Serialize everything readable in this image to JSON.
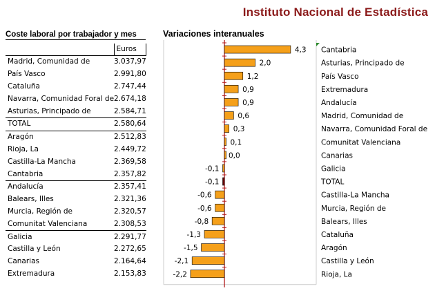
{
  "header": {
    "org": "Instituto Nacional de Estadística"
  },
  "table": {
    "title": "Coste laboral por trabajador y mes",
    "unit": "Euros",
    "rows": [
      {
        "region": "Madrid, Comunidad de",
        "value": "3.037,97"
      },
      {
        "region": "País Vasco",
        "value": "2.991,80"
      },
      {
        "region": "Cataluña",
        "value": "2.747,44"
      },
      {
        "region": "Navarra, Comunidad Foral de",
        "value": "2.674,18"
      },
      {
        "region": "Asturias, Principado de",
        "value": "2.584,71"
      },
      {
        "region": "TOTAL",
        "value": "2.580,64"
      },
      {
        "region": "Aragón",
        "value": "2.512,83"
      },
      {
        "region": "Rioja, La",
        "value": "2.449,72"
      },
      {
        "region": "Castilla-La Mancha",
        "value": "2.369,58"
      },
      {
        "region": "Cantabria",
        "value": "2.357,82"
      },
      {
        "region": "Andalucía",
        "value": "2.357,41"
      },
      {
        "region": "Balears, Illes",
        "value": "2.321,36"
      },
      {
        "region": "Murcia, Región de",
        "value": "2.320,57"
      },
      {
        "region": "Comunitat Valenciana",
        "value": "2.308,53"
      },
      {
        "region": "Galicia",
        "value": "2.291,77"
      },
      {
        "region": "Castilla y León",
        "value": "2.272,65"
      },
      {
        "region": "Canarias",
        "value": "2.164,64"
      },
      {
        "region": "Extremadura",
        "value": "2.153,83"
      }
    ],
    "separators_after": [
      4,
      5,
      9,
      13
    ]
  },
  "chart_data": {
    "type": "bar",
    "orientation": "horizontal",
    "title": "Variaciones interanuales",
    "categories": [
      "Cantabria",
      "Asturias, Principado de",
      "País Vasco",
      "Extremadura",
      "Andalucía",
      "Madrid, Comunidad de",
      "Navarra, Comunidad Foral de",
      "Comunitat Valenciana",
      "Canarias",
      "Galicia",
      "TOTAL",
      "Castilla-La Mancha",
      "Murcia, Región de",
      "Balears, Illes",
      "Cataluña",
      "Aragón",
      "Castilla y León",
      "Rioja, La"
    ],
    "values": [
      4.3,
      2.0,
      1.2,
      0.9,
      0.9,
      0.6,
      0.3,
      0.1,
      0.0,
      -0.1,
      -0.1,
      -0.6,
      -0.6,
      -0.8,
      -1.3,
      -1.5,
      -2.1,
      -2.2
    ],
    "value_labels": [
      "4,3",
      "2,0",
      "1,2",
      "0,9",
      "0,9",
      "0,6",
      "0,3",
      "0,1",
      "0,0",
      "-0,1",
      "-0,1",
      "-0,6",
      "-0,6",
      "-0,8",
      "-1,3",
      "-1,5",
      "-2,1",
      "-2,2"
    ],
    "highlight_category": "TOTAL",
    "colors": {
      "bar": "#f5a01a",
      "total": "#6b0000",
      "axis": "#b01818",
      "frame": "#cccccc",
      "outline": "#000000"
    }
  }
}
